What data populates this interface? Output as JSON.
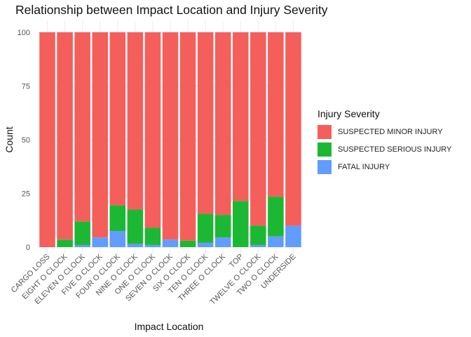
{
  "chart_data": {
    "type": "bar",
    "stacked": true,
    "title": "Relationship between Impact Location and Injury Severity",
    "xlabel": "Impact Location",
    "ylabel": "Count",
    "ylim": [
      0,
      100
    ],
    "yticks": [
      0,
      25,
      50,
      75,
      100
    ],
    "grid": true,
    "legend_title": "Injury Severity",
    "legend_position": "right",
    "categories": [
      "CARGO LOSS",
      "EIGHT O CLOCK",
      "ELEVEN O CLOCK",
      "FIVE O CLOCK",
      "FOUR O CLOCK",
      "NINE O CLOCK",
      "ONE O CLOCK",
      "SEVEN O CLOCK",
      "SIX O CLOCK",
      "TEN O CLOCK",
      "THREE O CLOCK",
      "TOP",
      "TWELVE O CLOCK",
      "TWO O CLOCK",
      "UNDERSIDE"
    ],
    "series": [
      {
        "name": "FATAL INJURY",
        "color": "#619cff",
        "values": [
          0,
          0,
          1,
          4.5,
          7.5,
          1.5,
          1,
          3.5,
          0,
          2,
          4.5,
          0,
          1,
          5,
          10
        ]
      },
      {
        "name": "SUSPECTED SERIOUS INJURY",
        "color": "#1cb833",
        "values": [
          0,
          3.5,
          11,
          0,
          12,
          16,
          8,
          0,
          3,
          13.5,
          10.5,
          21.5,
          9,
          18.5,
          0
        ]
      },
      {
        "name": "SUSPECTED MINOR INJURY",
        "color": "#f45f5c",
        "values": [
          100,
          96.5,
          88,
          95.5,
          80.5,
          82.5,
          91,
          96.5,
          97,
          84.5,
          85,
          78.5,
          90,
          76.5,
          90
        ]
      }
    ],
    "legend_order": [
      "SUSPECTED MINOR INJURY",
      "SUSPECTED SERIOUS INJURY",
      "FATAL INJURY"
    ]
  }
}
